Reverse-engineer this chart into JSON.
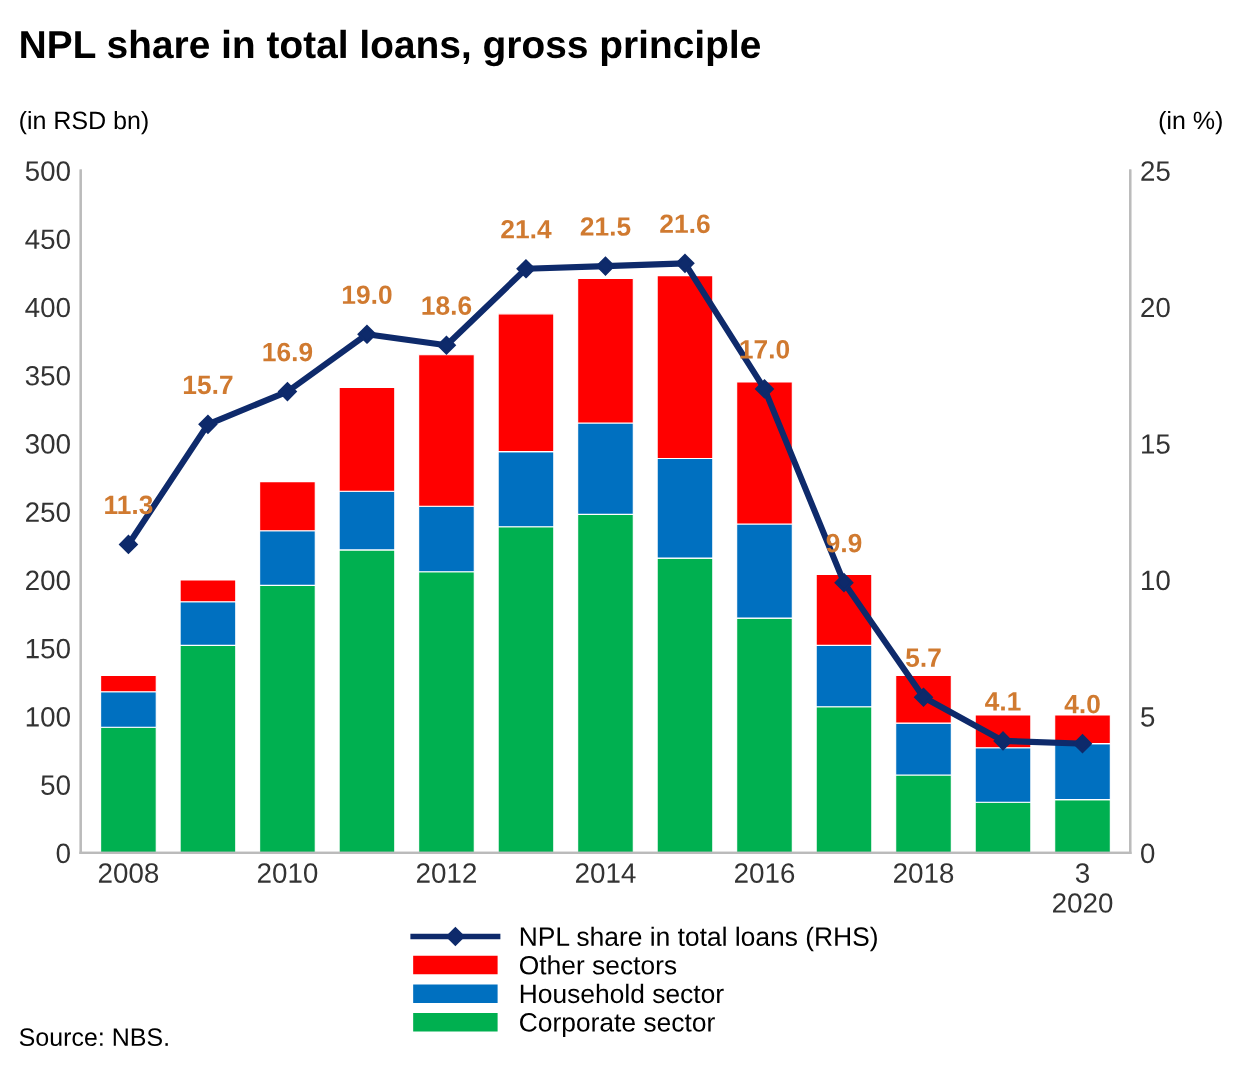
{
  "chart_data": {
    "type": "bar",
    "title": "NPL share in total loans, gross principle",
    "ylabel": "(in RSD bn)",
    "y2label": "(in %)",
    "categories": [
      "2008",
      null,
      "2010",
      null,
      "2012",
      null,
      "2014",
      null,
      "2016",
      null,
      "2018",
      null,
      "3\n2020"
    ],
    "stacked": true,
    "series": [
      {
        "name": "Corporate sector",
        "color": "#00b050",
        "values": [
          92,
          152,
          196,
          222,
          206,
          239,
          248,
          216,
          172,
          107,
          57,
          37,
          39
        ]
      },
      {
        "name": "Household sector",
        "color": "#0070c0",
        "values": [
          26,
          32,
          40,
          43,
          48,
          55,
          67,
          73,
          69,
          45,
          38,
          40,
          41
        ]
      },
      {
        "name": "Other sectors",
        "color": "#ff0000",
        "values": [
          12,
          16,
          36,
          76,
          111,
          101,
          106,
          134,
          104,
          52,
          35,
          24,
          21
        ]
      },
      {
        "name": "NPL share in total loans (RHS)",
        "type": "line",
        "axis": "y2",
        "color": "#0e2a6b",
        "marker": "diamond",
        "values": [
          11.3,
          15.7,
          16.9,
          19.0,
          18.6,
          21.4,
          21.5,
          21.6,
          17.0,
          9.9,
          5.7,
          4.1,
          4.0
        ],
        "value_labels": [
          "11.3",
          "15.7",
          "16.9",
          "19.0",
          "18.6",
          "21.4",
          "21.5",
          "21.6",
          "17.0",
          "9.9",
          "5.7",
          "4.1",
          "4.0"
        ]
      }
    ],
    "ylim": [
      0,
      500
    ],
    "yticks": [
      0,
      50,
      100,
      150,
      200,
      250,
      300,
      350,
      400,
      450,
      500
    ],
    "y2lim": [
      0,
      25
    ],
    "y2ticks": [
      0,
      5,
      10,
      15,
      20,
      25
    ],
    "legend": "bottom",
    "grid": false,
    "annotations": [
      "Source: NBS."
    ]
  }
}
